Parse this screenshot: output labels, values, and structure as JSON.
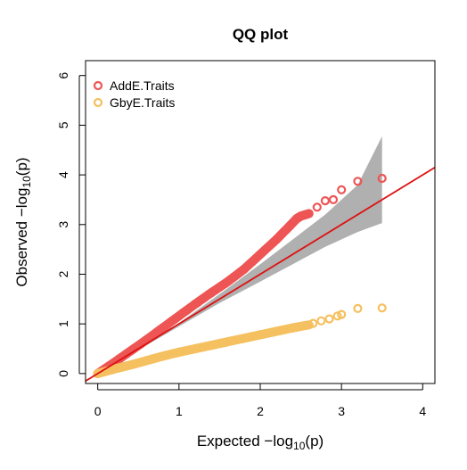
{
  "chart_data": {
    "type": "scatter",
    "title": "QQ plot",
    "xlabel": {
      "prefix": "Expected ",
      "minus": "−log",
      "sub": "10",
      "arg": "(p)"
    },
    "ylabel": {
      "prefix": "Observed ",
      "minus": "−log",
      "sub": "10",
      "arg": "(p)"
    },
    "xlim": [
      -0.15,
      4.15
    ],
    "ylim": [
      -0.2,
      6.3
    ],
    "xticks": [
      "0",
      "1",
      "2",
      "3",
      "4"
    ],
    "yticks": [
      "0",
      "1",
      "2",
      "3",
      "4",
      "5",
      "6"
    ],
    "legend_position": "top-left",
    "reference_line": {
      "slope": 1,
      "intercept": 0,
      "color": "#dd1111"
    },
    "confidence_band": {
      "color": "#b0b0b0",
      "x": [
        0,
        1.0,
        1.5,
        2.0,
        2.4,
        2.8,
        3.2,
        3.5
      ],
      "lower": [
        0,
        0.95,
        1.42,
        1.85,
        2.2,
        2.55,
        2.85,
        3.03
      ],
      "upper": [
        0,
        1.02,
        1.6,
        2.2,
        2.7,
        3.2,
        3.8,
        4.78
      ]
    },
    "series": [
      {
        "name": "AddE.Traits",
        "color": "#ee5555",
        "x": [
          0,
          0.2,
          0.4,
          0.6,
          0.8,
          1.0,
          1.2,
          1.4,
          1.6,
          1.8,
          2.0,
          2.2,
          2.35,
          2.45,
          2.5,
          2.6,
          2.7,
          2.8,
          2.9,
          3.0,
          3.2,
          3.5
        ],
        "y": [
          0,
          0.22,
          0.45,
          0.68,
          0.92,
          1.16,
          1.4,
          1.63,
          1.85,
          2.1,
          2.4,
          2.7,
          2.95,
          3.12,
          3.17,
          3.22,
          3.35,
          3.48,
          3.5,
          3.7,
          3.87,
          3.93
        ]
      },
      {
        "name": "GbyE.Traits",
        "color": "#f5c060",
        "x": [
          0,
          0.2,
          0.4,
          0.6,
          0.8,
          1.0,
          1.2,
          1.4,
          1.6,
          1.8,
          2.0,
          2.2,
          2.4,
          2.6,
          2.65,
          2.75,
          2.85,
          2.95,
          3.0,
          3.2,
          3.5
        ],
        "y": [
          0,
          0.09,
          0.17,
          0.26,
          0.35,
          0.43,
          0.5,
          0.57,
          0.64,
          0.71,
          0.78,
          0.85,
          0.92,
          0.98,
          1.01,
          1.06,
          1.1,
          1.16,
          1.19,
          1.31,
          1.32
        ]
      }
    ]
  }
}
